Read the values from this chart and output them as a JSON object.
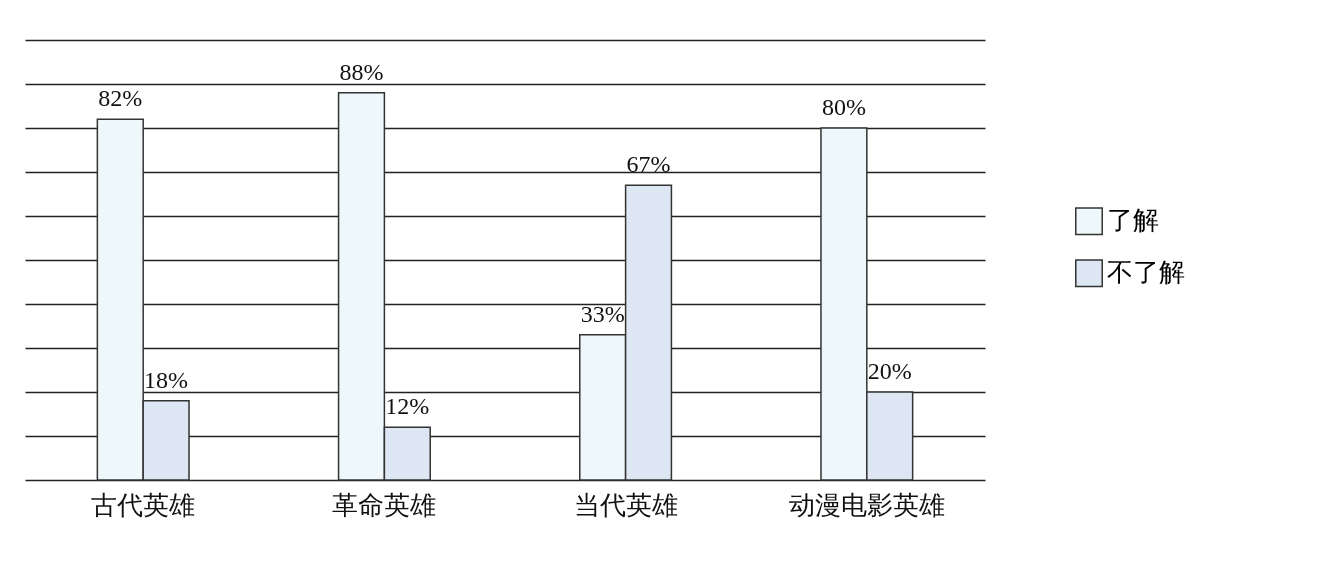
{
  "chart_data": {
    "type": "bar",
    "categories": [
      "古代英雄",
      "革命英雄",
      "当代英雄",
      "动漫电影英雄"
    ],
    "series": [
      {
        "name": "了解",
        "color": "#eef8fb",
        "values": [
          82,
          88,
          33,
          80
        ],
        "value_labels": [
          "82%",
          "88%",
          "33%",
          "80%"
        ]
      },
      {
        "name": "不了解",
        "color": "#dce7f3",
        "values": [
          18,
          12,
          67,
          20
        ],
        "value_labels": [
          "18%",
          "12%",
          "67%",
          "20%"
        ]
      }
    ],
    "ylim": [
      0,
      100
    ],
    "yticks": [
      {
        "value": 0,
        "label": null
      },
      {
        "value": 10,
        "label": null
      },
      {
        "value": 20,
        "label": null
      },
      {
        "value": 30,
        "label": null
      },
      {
        "value": 40,
        "label": null
      },
      {
        "value": 50,
        "label": null
      },
      {
        "value": 60,
        "label": null
      },
      {
        "value": 70,
        "label": null
      },
      {
        "value": 80,
        "label": null
      },
      {
        "value": 90,
        "label": null
      },
      {
        "value": 100,
        "label": null
      }
    ],
    "grid": "y",
    "legend": "right",
    "tick_labels": "x"
  }
}
